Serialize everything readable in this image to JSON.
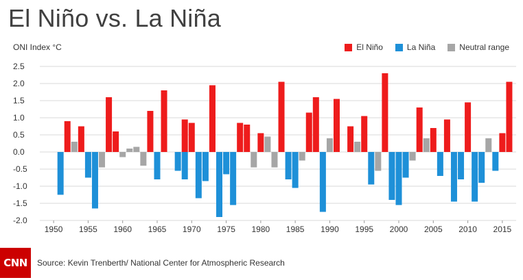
{
  "title": "El Niño vs. La Niña",
  "source": "Source: Kevin Trenberth/ National Center for Atmospheric Research",
  "logo_text": "CNN",
  "colors": {
    "el_nino": "#ee1c1c",
    "la_nina": "#1e90d8",
    "neutral": "#a6a6a6",
    "grid": "#d9d9d9"
  },
  "chart_data": {
    "type": "bar",
    "ylabel": "ONI Index °C",
    "ylim": [
      -2.0,
      2.5
    ],
    "yticks": [
      "2.5",
      "2.0",
      "1.5",
      "1.0",
      "0.5",
      "0.0",
      "-0.5",
      "-1.0",
      "-1.5",
      "-2.0"
    ],
    "xlim": [
      1948,
      2017
    ],
    "xticks": [
      "1950",
      "1955",
      "1960",
      "1965",
      "1970",
      "1975",
      "1980",
      "1985",
      "1990",
      "1995",
      "2000",
      "2005",
      "2010",
      "2015"
    ],
    "grid": true,
    "legend": "top-right",
    "series": [
      {
        "name": "El Niño",
        "color": "#ee1c1c",
        "points": [
          [
            1952,
            0.9
          ],
          [
            1954,
            0.75
          ],
          [
            1958,
            1.6
          ],
          [
            1959,
            0.6
          ],
          [
            1964,
            1.2
          ],
          [
            1966,
            1.8
          ],
          [
            1969,
            0.95
          ],
          [
            1970,
            0.85
          ],
          [
            1973,
            1.95
          ],
          [
            1977,
            0.85
          ],
          [
            1978,
            0.8
          ],
          [
            1980,
            0.55
          ],
          [
            1983,
            2.05
          ],
          [
            1987,
            1.15
          ],
          [
            1988,
            1.6
          ],
          [
            1991,
            1.55
          ],
          [
            1993,
            0.75
          ],
          [
            1995,
            1.05
          ],
          [
            1998,
            2.3
          ],
          [
            2003,
            1.3
          ],
          [
            2005,
            0.7
          ],
          [
            2007,
            0.95
          ],
          [
            2010,
            1.45
          ],
          [
            2015,
            0.55
          ],
          [
            2016,
            2.05
          ]
        ]
      },
      {
        "name": "La Niña",
        "color": "#1e90d8",
        "points": [
          [
            1951,
            -1.25
          ],
          [
            1955,
            -0.75
          ],
          [
            1956,
            -1.65
          ],
          [
            1965,
            -0.8
          ],
          [
            1968,
            -0.55
          ],
          [
            1969,
            -0.8
          ],
          [
            1971,
            -1.35
          ],
          [
            1972,
            -0.85
          ],
          [
            1974,
            -1.9
          ],
          [
            1975,
            -0.65
          ],
          [
            1976,
            -1.55
          ],
          [
            1984,
            -0.8
          ],
          [
            1985,
            -1.05
          ],
          [
            1989,
            -1.75
          ],
          [
            1996,
            -0.95
          ],
          [
            1999,
            -1.4
          ],
          [
            2000,
            -1.55
          ],
          [
            2001,
            -0.75
          ],
          [
            2006,
            -0.7
          ],
          [
            2008,
            -1.45
          ],
          [
            2009,
            -0.8
          ],
          [
            2011,
            -1.45
          ],
          [
            2012,
            -0.9
          ],
          [
            2014,
            -0.55
          ]
        ]
      },
      {
        "name": "Neutral range",
        "color": "#a6a6a6",
        "points": [
          [
            1953,
            0.3
          ],
          [
            1957,
            -0.45
          ],
          [
            1960,
            -0.15
          ],
          [
            1961,
            0.1
          ],
          [
            1962,
            0.15
          ],
          [
            1963,
            -0.4
          ],
          [
            1979,
            -0.45
          ],
          [
            1981,
            0.45
          ],
          [
            1982,
            -0.45
          ],
          [
            1986,
            -0.25
          ],
          [
            1990,
            0.4
          ],
          [
            1994,
            0.3
          ],
          [
            1997,
            -0.55
          ],
          [
            2002,
            -0.25
          ],
          [
            2004,
            0.4
          ],
          [
            2013,
            0.4
          ]
        ]
      }
    ]
  }
}
